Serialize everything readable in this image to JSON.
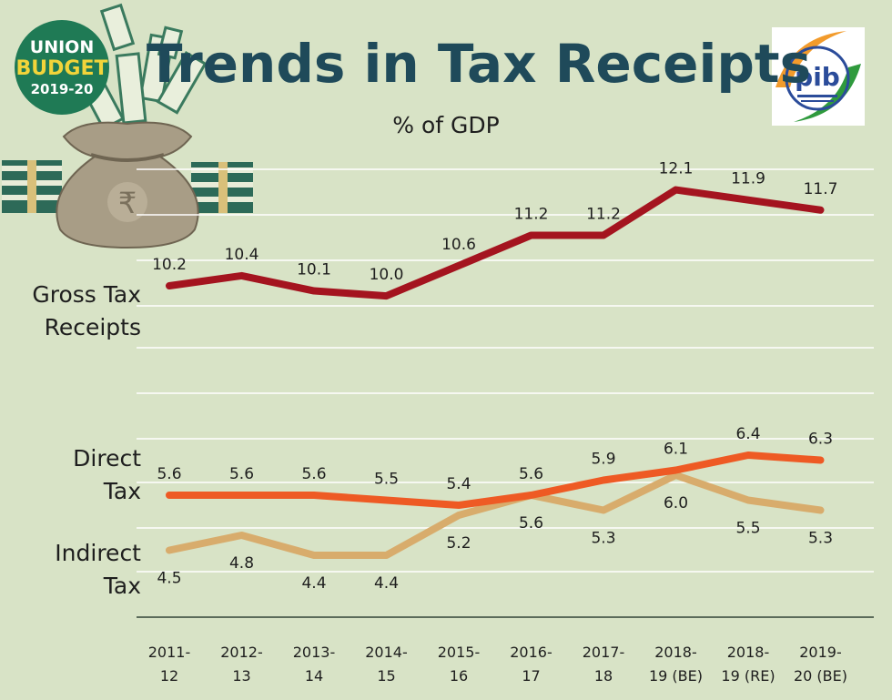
{
  "header": {
    "title": "Trends in Tax Receipts",
    "subtitle": "% of GDP"
  },
  "badge": {
    "line1": "UNION",
    "line2": "BUDGET",
    "line3": "2019-20"
  },
  "logo": {
    "text": "pib"
  },
  "colors": {
    "background": "#d8e3c6",
    "gross": "#a4141f",
    "direct": "#ee5a24",
    "indirect": "#d8ac6c",
    "title": "#1f4a5a",
    "badge": "#1f7a55"
  },
  "icons": [
    "money-bag-icon",
    "rupee-icon",
    "cash-bundle-icon",
    "pib-logo-icon"
  ],
  "chart_data": {
    "type": "line",
    "categories": [
      "2011-12",
      "2012-13",
      "2013-14",
      "2014-15",
      "2015-16",
      "2016-17",
      "2017-18",
      "2018-19 (BE)",
      "2018-19 (RE)",
      "2019-20 (BE)"
    ],
    "category_lines": [
      [
        "2011-",
        "12"
      ],
      [
        "2012-",
        "13"
      ],
      [
        "2013-",
        "14"
      ],
      [
        "2014-",
        "15"
      ],
      [
        "2015-",
        "16"
      ],
      [
        "2016-",
        "17"
      ],
      [
        "2017-",
        "18"
      ],
      [
        "2018-",
        "19 (BE)"
      ],
      [
        "2018-",
        "19 (RE)"
      ],
      [
        "2019-",
        "20 (BE)"
      ]
    ],
    "series": [
      {
        "name": "Gross Tax Receipts",
        "label_lines": [
          "Gross Tax",
          "Receipts"
        ],
        "values": [
          10.2,
          10.4,
          10.1,
          10.0,
          10.6,
          11.2,
          11.2,
          12.1,
          11.9,
          11.7
        ],
        "value_labels": [
          "10.2",
          "10.4",
          "10.1",
          "10.0",
          "10.6",
          "11.2",
          "11.2",
          "12.1",
          "11.9",
          "11.7"
        ]
      },
      {
        "name": "Direct Tax",
        "label_lines": [
          "Direct",
          "Tax"
        ],
        "values": [
          5.6,
          5.6,
          5.6,
          5.5,
          5.4,
          5.6,
          5.9,
          6.1,
          6.4,
          6.3
        ],
        "value_labels": [
          "5.6",
          "5.6",
          "5.6",
          "5.5",
          "5.4",
          "5.6",
          "5.9",
          "6.1",
          "6.4",
          "6.3"
        ]
      },
      {
        "name": "Indirect Tax",
        "label_lines": [
          "Indirect",
          "Tax"
        ],
        "values": [
          4.5,
          4.8,
          4.4,
          4.4,
          5.2,
          5.6,
          5.3,
          6.0,
          5.5,
          5.3
        ],
        "value_labels": [
          "4.5",
          "4.8",
          "4.4",
          "4.4",
          "5.2",
          "5.6",
          "5.3",
          "6.0",
          "5.5",
          "5.3"
        ]
      }
    ],
    "grid": true,
    "legend": "inline-left"
  }
}
